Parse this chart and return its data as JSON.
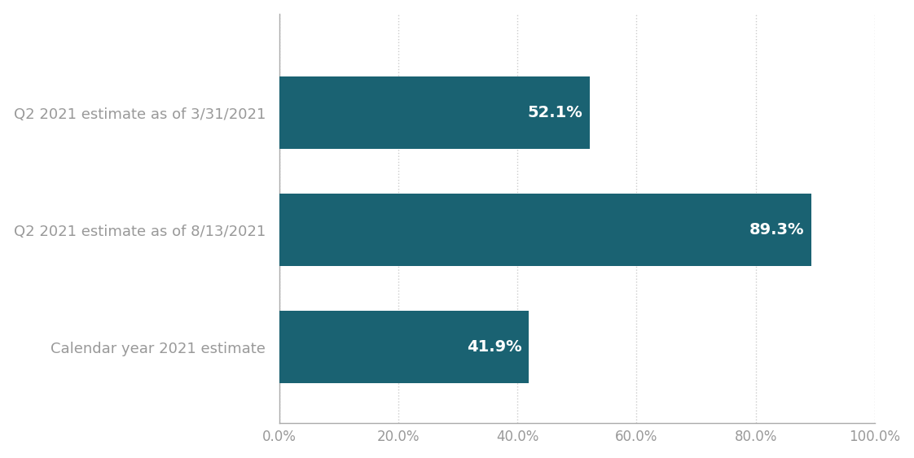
{
  "categories": [
    "Q2 2021 estimate as of 3/31/2021",
    "Q2 2021 estimate as of 8/13/2021",
    "Calendar year 2021 estimate"
  ],
  "values": [
    52.1,
    89.3,
    41.9
  ],
  "labels": [
    "52.1%",
    "89.3%",
    "41.9%"
  ],
  "bar_color": "#1a6272",
  "background_color": "#ffffff",
  "label_color": "#ffffff",
  "category_label_color": "#999999",
  "xlim": [
    0,
    100
  ],
  "xticks": [
    0,
    20,
    40,
    60,
    80,
    100
  ],
  "xtick_labels": [
    "0.0%",
    "20.0%",
    "40.0%",
    "60.0%",
    "80.0%",
    "100.0%"
  ],
  "grid_color": "#cccccc",
  "spine_color": "#aaaaaa",
  "bar_height": 0.62,
  "label_fontsize": 14,
  "category_fontsize": 13,
  "xtick_fontsize": 12
}
